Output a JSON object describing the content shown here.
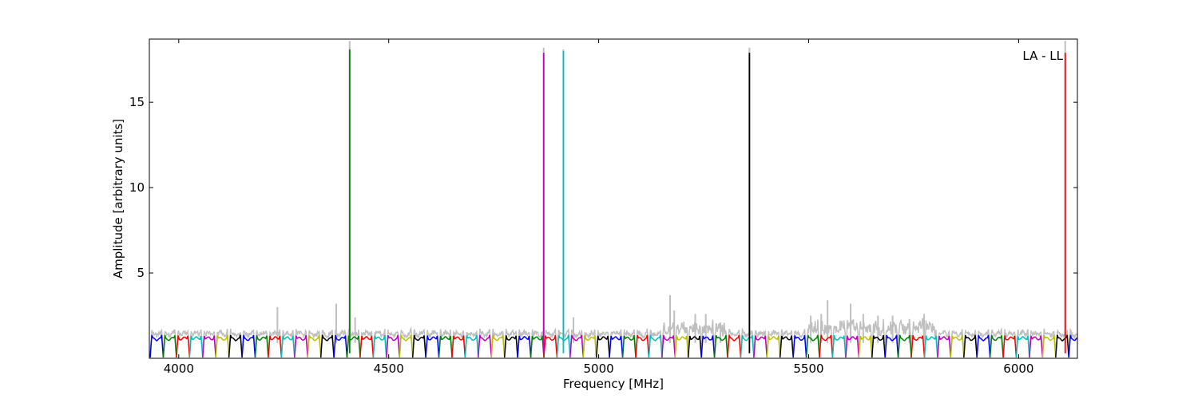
{
  "chart_data": {
    "type": "line",
    "title": "",
    "xlabel": "Frequency [MHz]",
    "ylabel": "Amplitude [arbitrary units]",
    "xlim": [
      3930,
      6140
    ],
    "ylim": [
      0,
      18.7
    ],
    "xticks": [
      4000,
      4500,
      5000,
      5500,
      6000
    ],
    "yticks": [
      5,
      10,
      15
    ],
    "grid": false,
    "legend": "none",
    "annotation": "LA - LL",
    "bands": {
      "start": 3932,
      "width": 31.25,
      "count": 71,
      "base_level": 1.15,
      "colors": [
        "#0000ff",
        "#008000",
        "#ff0000",
        "#00bfbf",
        "#bf00bf",
        "#bfbf00",
        "#000000"
      ]
    },
    "raw_color": "#bfbfbf",
    "spikes": [
      {
        "x": 4407,
        "y": 18.1,
        "color": "#008000"
      },
      {
        "x": 4869,
        "y": 17.9,
        "color": "#bf00bf"
      },
      {
        "x": 4916,
        "y": 18.0,
        "color": "#00bfbf"
      },
      {
        "x": 5359,
        "y": 17.9,
        "color": "#000000"
      },
      {
        "x": 6111,
        "y": 17.9,
        "color": "#ff0000"
      }
    ],
    "raw_peaks": [
      {
        "x": 4235,
        "y": 3.0
      },
      {
        "x": 4375,
        "y": 3.2
      },
      {
        "x": 4407,
        "y": 18.6
      },
      {
        "x": 4420,
        "y": 2.4
      },
      {
        "x": 4869,
        "y": 18.2
      },
      {
        "x": 4916,
        "y": 18.1
      },
      {
        "x": 4940,
        "y": 2.4
      },
      {
        "x": 5170,
        "y": 3.7
      },
      {
        "x": 5180,
        "y": 2.8
      },
      {
        "x": 5230,
        "y": 2.6
      },
      {
        "x": 5255,
        "y": 2.6
      },
      {
        "x": 5290,
        "y": 2.1
      },
      {
        "x": 5359,
        "y": 18.2
      },
      {
        "x": 5505,
        "y": 2.5
      },
      {
        "x": 5530,
        "y": 2.6
      },
      {
        "x": 5545,
        "y": 3.4
      },
      {
        "x": 5600,
        "y": 3.2
      },
      {
        "x": 5630,
        "y": 2.6
      },
      {
        "x": 5665,
        "y": 2.5
      },
      {
        "x": 5700,
        "y": 2.5
      },
      {
        "x": 5740,
        "y": 2.3
      },
      {
        "x": 5775,
        "y": 2.6
      },
      {
        "x": 6111,
        "y": 18.6
      }
    ]
  }
}
